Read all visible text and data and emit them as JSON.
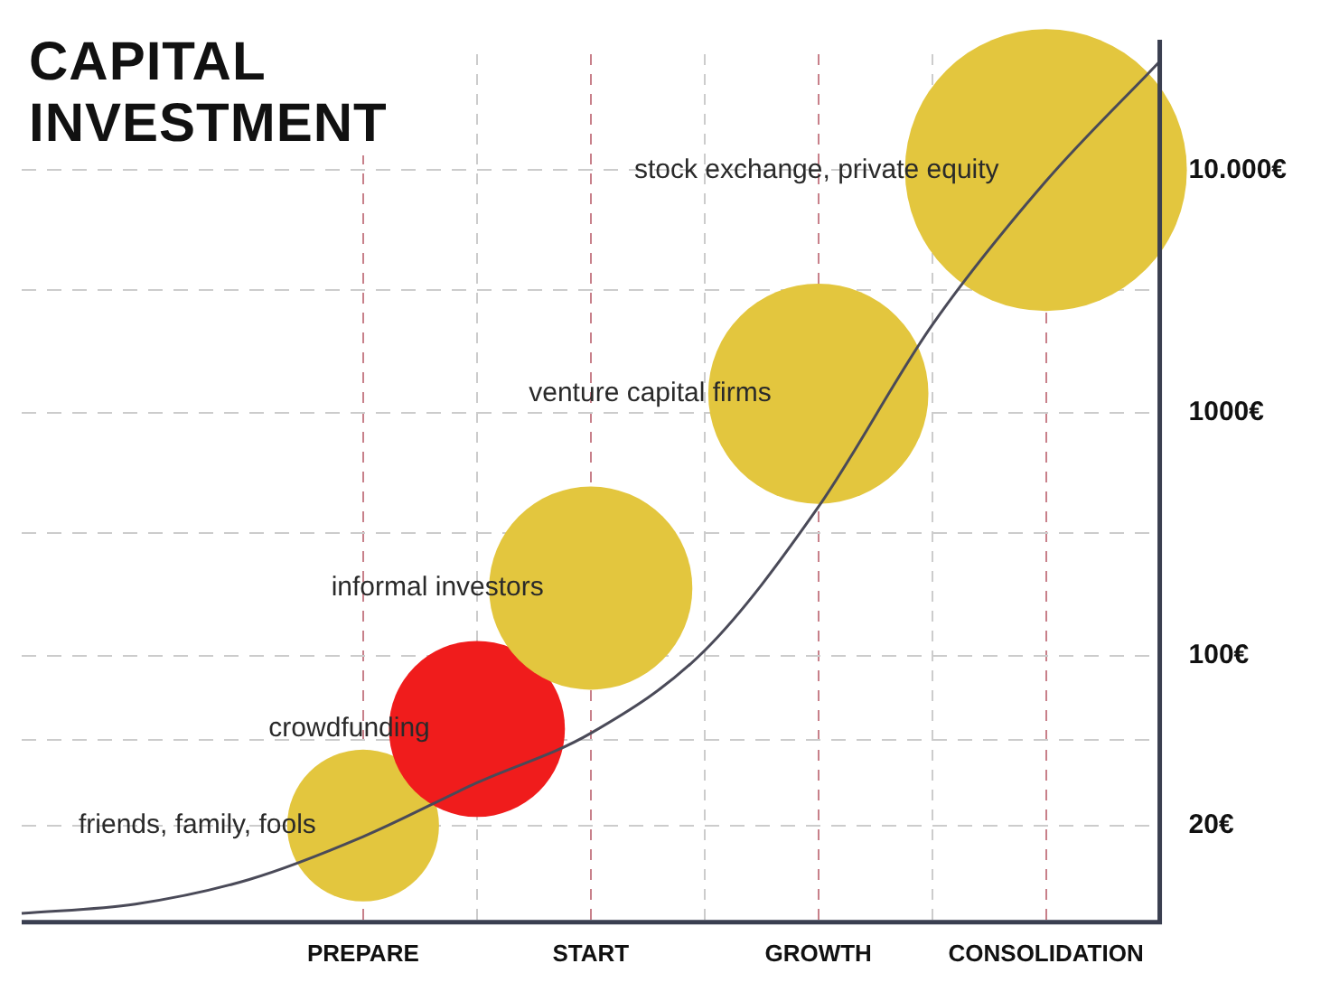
{
  "chart_data": {
    "type": "bubble",
    "title": "CAPITAL INVESTMENT",
    "categories": [
      null,
      null,
      null,
      "PREPARE",
      null,
      "START",
      null,
      "GROWTH",
      null,
      "CONSOLIDATION",
      null
    ],
    "ylim": [
      8,
      30000
    ],
    "log": true,
    "yticks": [
      {
        "value": 20,
        "label": "20€"
      },
      {
        "value": 45,
        "label": null
      },
      {
        "value": 100,
        "label": "100€"
      },
      {
        "value": 320,
        "label": null
      },
      {
        "value": 1000,
        "label": "1000€"
      },
      {
        "value": 3200,
        "label": null
      },
      {
        "value": 10000,
        "label": "10.000€"
      }
    ],
    "grid": true,
    "legend": false,
    "series": [
      {
        "type": "line",
        "color": "#4a4a58",
        "values": [
          8.7,
          9.5,
          12,
          18,
          30,
          48,
          105,
          410,
          2300,
          9000,
          28000
        ]
      },
      {
        "colors": [
          null,
          null,
          null,
          "#e3c63e",
          "#f01c1c",
          "#e3c63e",
          null,
          "#e3c63e",
          null,
          "#e3c63e",
          null
        ],
        "values": [
          null,
          null,
          null,
          20,
          50,
          190,
          null,
          1200,
          null,
          10000,
          null
        ],
        "sizes": [
          null,
          null,
          null,
          0.29,
          0.39,
          0.52,
          null,
          0.61,
          null,
          1,
          null
        ],
        "value_labels": [
          null,
          null,
          null,
          "friends, family, fools",
          "crowdfunding",
          "informal investors",
          null,
          "venture capital firms",
          null,
          "stock exchange, private equity",
          null
        ]
      }
    ]
  }
}
